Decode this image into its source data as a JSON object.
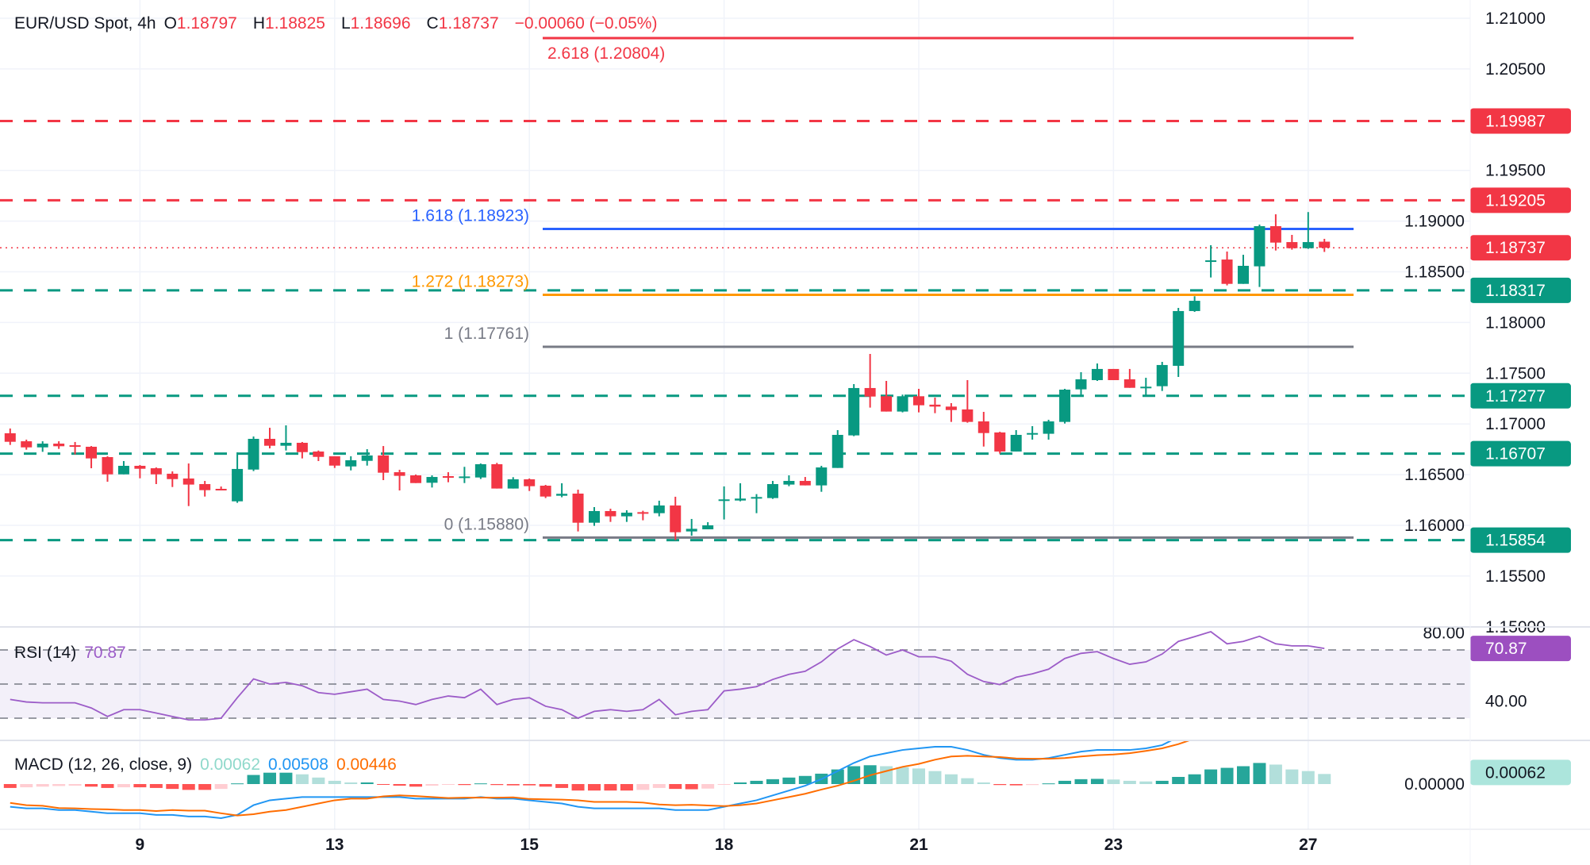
{
  "header": {
    "symbol": "EUR/USD Spot, 4h",
    "o_label": "O",
    "o": "1.18797",
    "h_label": "H",
    "h": "1.18825",
    "l_label": "L",
    "l": "1.18696",
    "c_label": "C",
    "c": "1.18737",
    "change": "−0.00060 (−0.05%)"
  },
  "colors": {
    "up": "#089981",
    "down": "#f23645",
    "rsi": "#9c5cc8",
    "macd": "#2196f3",
    "signal": "#ff6d00",
    "hist_pos": "#26a69a",
    "hist_pos_light": "#b2dfdb",
    "hist_neg": "#ff5252",
    "hist_neg_light": "#ffcdd2"
  },
  "price_axis": {
    "ticks": [
      "1.21000",
      "1.20500",
      "1.19500",
      "1.19000",
      "1.18500",
      "1.18000",
      "1.17500",
      "1.17000",
      "1.16500",
      "1.16000",
      "1.15500",
      "1.15000"
    ]
  },
  "levels": [
    {
      "value": 1.19987,
      "label": "1.19987",
      "style": "dashed",
      "color": "#f23645"
    },
    {
      "value": 1.19205,
      "label": "1.19205",
      "style": "dashed",
      "color": "#f23645"
    },
    {
      "value": 1.18737,
      "label": "1.18737",
      "style": "dotted",
      "color": "#f23645"
    },
    {
      "value": 1.18317,
      "label": "1.18317",
      "style": "dashed",
      "color": "#089981"
    },
    {
      "value": 1.17277,
      "label": "1.17277",
      "style": "dashed",
      "color": "#089981"
    },
    {
      "value": 1.16707,
      "label": "1.16707",
      "style": "dashed",
      "color": "#089981"
    },
    {
      "value": 1.15854,
      "label": "1.15854",
      "style": "dashed",
      "color": "#089981"
    }
  ],
  "fib": [
    {
      "value": 1.20804,
      "label": "2.618 (1.20804)",
      "color": "#f23645"
    },
    {
      "value": 1.18923,
      "label": "1.618 (1.18923)",
      "color": "#2962ff"
    },
    {
      "value": 1.18273,
      "label": "1.272 (1.18273)",
      "color": "#ff9800"
    },
    {
      "value": 1.17761,
      "label": "1 (1.17761)",
      "color": "#787b86"
    },
    {
      "value": 1.1588,
      "label": "0 (1.15880)",
      "color": "#787b86"
    }
  ],
  "time_axis": {
    "labels": [
      "9",
      "13",
      "15",
      "18",
      "21",
      "23",
      "27"
    ]
  },
  "rsi": {
    "title": "RSI (14)",
    "value": "70.87",
    "axis_labels": [
      "80.00",
      "40.00"
    ],
    "levels": [
      70,
      50,
      30
    ]
  },
  "macd": {
    "title": "MACD (12, 26, close, 9)",
    "hist": "0.00062",
    "macd": "0.00508",
    "signal": "0.00446",
    "axis_label": "0.00000"
  },
  "chart_data": {
    "type": "candlestick",
    "timeframe": "4h",
    "ylim": [
      1.15,
      1.21
    ],
    "ohlc": [
      [
        1.16908,
        1.16955,
        1.16793,
        1.16824
      ],
      [
        1.16829,
        1.16845,
        1.16746,
        1.16769
      ],
      [
        1.16769,
        1.16829,
        1.16725,
        1.16806
      ],
      [
        1.16806,
        1.16829,
        1.16754,
        1.1678
      ],
      [
        1.1679,
        1.16822,
        1.16699,
        1.16777
      ],
      [
        1.16775,
        1.16782,
        1.16563,
        1.1666
      ],
      [
        1.16673,
        1.16681,
        1.1643,
        1.16503
      ],
      [
        1.16503,
        1.16634,
        1.16503,
        1.16587
      ],
      [
        1.16587,
        1.16595,
        1.16464,
        1.16558
      ],
      [
        1.16563,
        1.16571,
        1.16407,
        1.16503
      ],
      [
        1.16509,
        1.16532,
        1.16378,
        1.16456
      ],
      [
        1.16462,
        1.1661,
        1.1619,
        1.16402
      ],
      [
        1.16407,
        1.16438,
        1.16284,
        1.16347
      ],
      [
        1.1636,
        1.16383,
        1.16347,
        1.16347
      ],
      [
        1.16237,
        1.1672,
        1.16222,
        1.16556
      ],
      [
        1.1655,
        1.16876,
        1.16535,
        1.16853
      ],
      [
        1.16853,
        1.16962,
        1.16759,
        1.16785
      ],
      [
        1.16785,
        1.16986,
        1.16738,
        1.16814
      ],
      [
        1.16814,
        1.16822,
        1.1666,
        1.16722
      ],
      [
        1.16728,
        1.16738,
        1.16634,
        1.16675
      ],
      [
        1.16681,
        1.16681,
        1.16566,
        1.16589
      ],
      [
        1.16581,
        1.16681,
        1.16542,
        1.16642
      ],
      [
        1.16636,
        1.16751,
        1.16589,
        1.16689
      ],
      [
        1.16689,
        1.16782,
        1.16446,
        1.16519
      ],
      [
        1.16524,
        1.16548,
        1.16344,
        1.16488
      ],
      [
        1.16493,
        1.16501,
        1.16417,
        1.16417
      ],
      [
        1.1642,
        1.16493,
        1.16373,
        1.16477
      ],
      [
        1.16485,
        1.16524,
        1.16425,
        1.16475
      ],
      [
        1.16475,
        1.16577,
        1.16417,
        1.16482
      ],
      [
        1.16472,
        1.1661,
        1.16457,
        1.16603
      ],
      [
        1.16603,
        1.16616,
        1.16363,
        1.16363
      ],
      [
        1.16363,
        1.16475,
        1.16363,
        1.16454
      ],
      [
        1.16454,
        1.16462,
        1.16339,
        1.16386
      ],
      [
        1.16391,
        1.16399,
        1.16269,
        1.16284
      ],
      [
        1.16292,
        1.16415,
        1.16277,
        1.16311
      ],
      [
        1.16313,
        1.16352,
        1.1594,
        1.16026
      ],
      [
        1.16026,
        1.1618,
        1.15995,
        1.16141
      ],
      [
        1.16141,
        1.16164,
        1.16034,
        1.16089
      ],
      [
        1.16089,
        1.16149,
        1.16034,
        1.16125
      ],
      [
        1.1613,
        1.16144,
        1.1605,
        1.1612
      ],
      [
        1.1612,
        1.16243,
        1.16089,
        1.16196
      ],
      [
        1.16196,
        1.16282,
        1.15854,
        1.15932
      ],
      [
        1.1594,
        1.16063,
        1.15898,
        1.15966
      ],
      [
        1.15961,
        1.16031,
        1.15961,
        1.16
      ],
      [
        1.16245,
        1.16384,
        1.16058,
        1.16256
      ],
      [
        1.16245,
        1.16415,
        1.16237,
        1.16264
      ],
      [
        1.16269,
        1.16308,
        1.1612,
        1.16279
      ],
      [
        1.16269,
        1.16438,
        1.16261,
        1.16407
      ],
      [
        1.16402,
        1.16493,
        1.16386,
        1.16438
      ],
      [
        1.16438,
        1.16477,
        1.16394,
        1.16394
      ],
      [
        1.16394,
        1.16587,
        1.16331,
        1.16571
      ],
      [
        1.16566,
        1.16939,
        1.16566,
        1.16892
      ],
      [
        1.16887,
        1.17393,
        1.16879,
        1.17354
      ],
      [
        1.17354,
        1.1769,
        1.17161,
        1.1727
      ],
      [
        1.17273,
        1.17424,
        1.17122,
        1.17122
      ],
      [
        1.17122,
        1.17289,
        1.17114,
        1.17273
      ],
      [
        1.17273,
        1.17346,
        1.17114,
        1.17184
      ],
      [
        1.1719,
        1.1726,
        1.17106,
        1.17171
      ],
      [
        1.17171,
        1.17205,
        1.1702,
        1.17137
      ],
      [
        1.17143,
        1.17432,
        1.17012,
        1.1702
      ],
      [
        1.17025,
        1.17119,
        1.16777,
        1.1691
      ],
      [
        1.16916,
        1.16923,
        1.16707,
        1.16728
      ],
      [
        1.16728,
        1.16939,
        1.16728,
        1.16892
      ],
      [
        1.16905,
        1.16978,
        1.16845,
        1.1691
      ],
      [
        1.16903,
        1.17041,
        1.16845,
        1.17025
      ],
      [
        1.1702,
        1.17346,
        1.17004,
        1.17338
      ],
      [
        1.17341,
        1.1751,
        1.1727,
        1.1744
      ],
      [
        1.17432,
        1.17596,
        1.17424,
        1.17542
      ],
      [
        1.17542,
        1.17542,
        1.17432,
        1.17432
      ],
      [
        1.1744,
        1.17542,
        1.17356,
        1.17356
      ],
      [
        1.17356,
        1.17455,
        1.17286,
        1.17367
      ],
      [
        1.17372,
        1.17612,
        1.17325,
        1.17581
      ],
      [
        1.17573,
        1.18144,
        1.17463,
        1.18113
      ],
      [
        1.18113,
        1.18259,
        1.18105,
        1.18214
      ],
      [
        1.18608,
        1.18762,
        1.18444,
        1.18613
      ],
      [
        1.18621,
        1.187,
        1.18366,
        1.18381
      ],
      [
        1.18381,
        1.18668,
        1.18381,
        1.18559
      ],
      [
        1.18554,
        1.18966,
        1.1835,
        1.1895
      ],
      [
        1.1895,
        1.19067,
        1.1871,
        1.18788
      ],
      [
        1.18793,
        1.18864,
        1.18718,
        1.18733
      ],
      [
        1.18733,
        1.19089,
        1.18726,
        1.18793
      ],
      [
        1.18797,
        1.18825,
        1.18696,
        1.18737
      ]
    ],
    "rsi_values": [
      41,
      39.5,
      39,
      39,
      39,
      36,
      31,
      35,
      35,
      33,
      31,
      29,
      29,
      30,
      42,
      53,
      50,
      51,
      49,
      45,
      44,
      45.5,
      47,
      41,
      40,
      38,
      41,
      43,
      42,
      47,
      38,
      41,
      42,
      37,
      35,
      30,
      34,
      35,
      34,
      35,
      41,
      32,
      34,
      35,
      46,
      47,
      48.5,
      52.7,
      55.7,
      57.5,
      63,
      70.6,
      76,
      72,
      67,
      70,
      66,
      66,
      63.4,
      55.7,
      51.5,
      49.7,
      54,
      56,
      58.7,
      65,
      68,
      69,
      65,
      61.6,
      63,
      67.6,
      75,
      77.8,
      80.7,
      73.6,
      75,
      78,
      73.6,
      72.4,
      72.4,
      70.87
    ],
    "macd_values": [
      -0.0014,
      -0.0015,
      -0.0015,
      -0.0016,
      -0.0016,
      -0.0017,
      -0.0018,
      -0.0018,
      -0.0018,
      -0.0019,
      -0.0019,
      -0.002,
      -0.002,
      -0.0021,
      -0.0019,
      -0.0013,
      -0.001,
      -0.0009,
      -0.0008,
      -0.0008,
      -0.0008,
      -0.0008,
      -0.0008,
      -0.0008,
      -0.0008,
      -0.0009,
      -0.0009,
      -0.0009,
      -0.0009,
      -0.0008,
      -0.0009,
      -0.0009,
      -0.001,
      -0.0011,
      -0.0012,
      -0.0014,
      -0.0015,
      -0.0015,
      -0.0015,
      -0.0015,
      -0.0015,
      -0.0016,
      -0.0016,
      -0.0016,
      -0.0014,
      -0.0012,
      -0.001,
      -0.0007,
      -0.0004,
      -0.0001,
      0.0003,
      0.0008,
      0.0013,
      0.0017,
      0.0019,
      0.0021,
      0.0022,
      0.0023,
      0.0023,
      0.0021,
      0.0018,
      0.0016,
      0.0015,
      0.0015,
      0.0016,
      0.0018,
      0.002,
      0.0021,
      0.0021,
      0.0021,
      0.0022,
      0.0024,
      0.0029,
      0.0034,
      0.0039,
      0.0042,
      0.0045,
      0.0049,
      0.0052,
      0.0052,
      0.0052,
      0.00508
    ],
    "signal_values": [
      -0.00116,
      -0.0013,
      -0.00134,
      -0.00148,
      -0.0015,
      -0.00154,
      -0.00156,
      -0.0016,
      -0.0016,
      -0.00166,
      -0.0016,
      -0.00164,
      -0.00164,
      -0.0018,
      -0.00194,
      -0.00186,
      -0.0017,
      -0.0016,
      -0.0014,
      -0.0012,
      -0.001,
      -0.0009,
      -0.0009,
      -0.00076,
      -0.0007,
      -0.00074,
      -0.0008,
      -0.00086,
      -0.00084,
      -0.00084,
      -0.00084,
      -0.00082,
      -0.00092,
      -0.00094,
      -0.00096,
      -0.001,
      -0.0011,
      -0.0011,
      -0.0011,
      -0.00114,
      -0.00126,
      -0.0013,
      -0.00128,
      -0.00132,
      -0.00136,
      -0.0013,
      -0.0012,
      -0.001,
      -0.0008,
      -0.0006,
      -0.00034,
      -0.0001,
      0.0002,
      0.00054,
      0.0008,
      0.00106,
      0.00124,
      0.0015,
      0.0017,
      0.00174,
      0.0017,
      0.00166,
      0.00158,
      0.00156,
      0.00156,
      0.0016,
      0.0017,
      0.00178,
      0.00182,
      0.0019,
      0.00204,
      0.0022,
      0.00246,
      0.0028,
      0.003,
      0.0032,
      0.0034,
      0.0036,
      0.004,
      0.0043,
      0.0044,
      0.00446
    ],
    "hist_values": [
      -0.00024,
      -0.0002,
      -0.00016,
      -0.00012,
      -0.0001,
      -0.00016,
      -0.00024,
      -0.0002,
      -0.0002,
      -0.00024,
      -0.0003,
      -0.00036,
      -0.00036,
      -0.0003,
      4e-05,
      0.00056,
      0.0007,
      0.0007,
      0.0006,
      0.0004,
      0.0002,
      0.0001,
      0.0001,
      -4e-05,
      -0.0001,
      -0.00016,
      -0.0001,
      -4e-05,
      -6e-05,
      4e-05,
      -6e-05,
      -8e-05,
      -8e-05,
      -0.00016,
      -0.00024,
      -0.0004,
      -0.0004,
      -0.0004,
      -0.0004,
      -0.00036,
      -0.00024,
      -0.0003,
      -0.00032,
      -0.00028,
      -4e-05,
      0.0001,
      0.0002,
      0.0003,
      0.0004,
      0.0005,
      0.00064,
      0.0009,
      0.0011,
      0.00116,
      0.0011,
      0.00104,
      0.00096,
      0.0008,
      0.0006,
      0.00036,
      0.0001,
      -6e-05,
      -8e-05,
      -6e-05,
      4e-05,
      0.0002,
      0.0003,
      0.00032,
      0.00028,
      0.0002,
      0.00016,
      0.0002,
      0.00044,
      0.0006,
      0.0009,
      0.001,
      0.0011,
      0.0013,
      0.0012,
      0.0009,
      0.0008,
      0.00062
    ]
  }
}
